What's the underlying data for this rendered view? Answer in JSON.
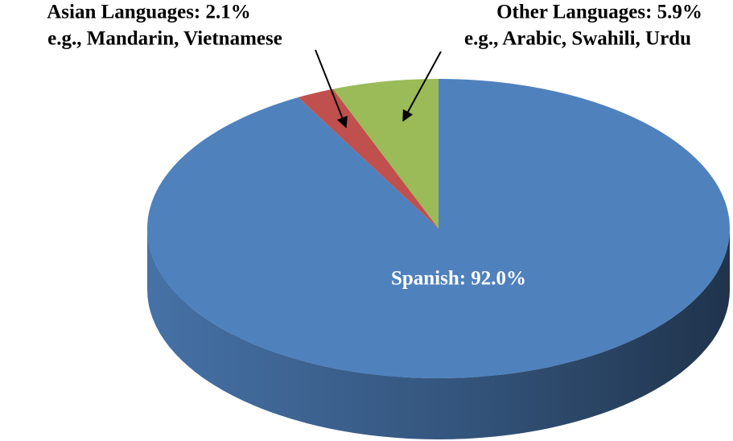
{
  "chart_data": {
    "type": "pie",
    "values": [
      92.0,
      2.1,
      5.9
    ],
    "value_labels": [
      "Spanish: 92.0%",
      "Asian Languages: 2.1%",
      "Other Languages: 5.9%"
    ],
    "annotations": [
      "e.g., Mandarin, Vietnamese",
      "e.g., Arabic, Swahili, Urdu"
    ],
    "colors": [
      "#4f81bd",
      "#c0504d",
      "#9bbb59"
    ],
    "start_angle": 0,
    "direction": "clockwise"
  }
}
